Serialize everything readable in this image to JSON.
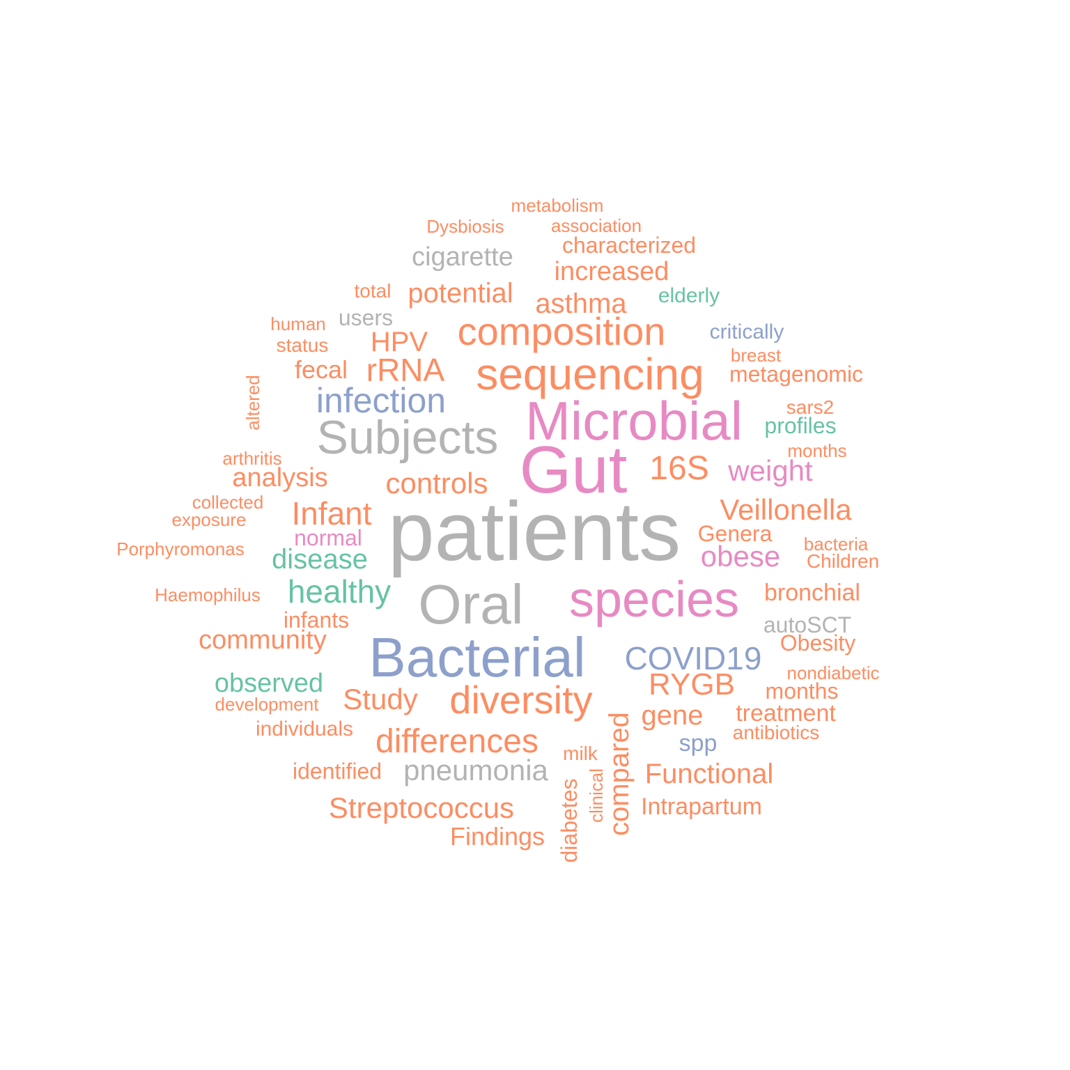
{
  "palette": {
    "orange": "#fc8d62",
    "gray": "#b3b3b3",
    "pink": "#e78ac3",
    "blue": "#8da0cb",
    "green": "#66c2a5"
  },
  "words": [
    {
      "text": "metabolism",
      "color": "orange"
    },
    {
      "text": "Dysbiosis",
      "color": "orange"
    },
    {
      "text": "association",
      "color": "orange"
    },
    {
      "text": "characterized",
      "color": "orange"
    },
    {
      "text": "cigarette",
      "color": "gray"
    },
    {
      "text": "increased",
      "color": "orange"
    },
    {
      "text": "total",
      "color": "orange"
    },
    {
      "text": "potential",
      "color": "orange"
    },
    {
      "text": "elderly",
      "color": "green"
    },
    {
      "text": "asthma",
      "color": "orange"
    },
    {
      "text": "users",
      "color": "gray"
    },
    {
      "text": "human",
      "color": "orange"
    },
    {
      "text": "composition",
      "color": "orange"
    },
    {
      "text": "critically",
      "color": "blue"
    },
    {
      "text": "HPV",
      "color": "orange"
    },
    {
      "text": "status",
      "color": "orange"
    },
    {
      "text": "breast",
      "color": "orange"
    },
    {
      "text": "fecal",
      "color": "orange"
    },
    {
      "text": "rRNA",
      "color": "orange"
    },
    {
      "text": "sequencing",
      "color": "orange"
    },
    {
      "text": "metagenomic",
      "color": "orange"
    },
    {
      "text": "altered",
      "color": "orange"
    },
    {
      "text": "infection",
      "color": "blue"
    },
    {
      "text": "sars2",
      "color": "orange"
    },
    {
      "text": "Microbial",
      "color": "pink"
    },
    {
      "text": "profiles",
      "color": "green"
    },
    {
      "text": "Subjects",
      "color": "gray"
    },
    {
      "text": "months",
      "color": "orange"
    },
    {
      "text": "arthritis",
      "color": "orange"
    },
    {
      "text": "Gut",
      "color": "pink"
    },
    {
      "text": "16S",
      "color": "orange"
    },
    {
      "text": "weight",
      "color": "pink"
    },
    {
      "text": "analysis",
      "color": "orange"
    },
    {
      "text": "controls",
      "color": "orange"
    },
    {
      "text": "collected",
      "color": "orange"
    },
    {
      "text": "Infant",
      "color": "orange"
    },
    {
      "text": "Veillonella",
      "color": "orange"
    },
    {
      "text": "exposure",
      "color": "orange"
    },
    {
      "text": "patients",
      "color": "gray"
    },
    {
      "text": "Genera",
      "color": "orange"
    },
    {
      "text": "normal",
      "color": "pink"
    },
    {
      "text": "bacteria",
      "color": "orange"
    },
    {
      "text": "Porphyromonas",
      "color": "orange"
    },
    {
      "text": "obese",
      "color": "pink"
    },
    {
      "text": "disease",
      "color": "green"
    },
    {
      "text": "Children",
      "color": "orange"
    },
    {
      "text": "healthy",
      "color": "green"
    },
    {
      "text": "species",
      "color": "pink"
    },
    {
      "text": "bronchial",
      "color": "orange"
    },
    {
      "text": "Haemophilus",
      "color": "orange"
    },
    {
      "text": "Oral",
      "color": "gray"
    },
    {
      "text": "infants",
      "color": "orange"
    },
    {
      "text": "autoSCT",
      "color": "gray"
    },
    {
      "text": "community",
      "color": "orange"
    },
    {
      "text": "Obesity",
      "color": "orange"
    },
    {
      "text": "Bacterial",
      "color": "blue"
    },
    {
      "text": "COVID19",
      "color": "blue"
    },
    {
      "text": "nondiabetic",
      "color": "orange"
    },
    {
      "text": "observed",
      "color": "green"
    },
    {
      "text": "RYGB",
      "color": "orange"
    },
    {
      "text": "months",
      "color": "orange"
    },
    {
      "text": "development",
      "color": "orange"
    },
    {
      "text": "Study",
      "color": "orange"
    },
    {
      "text": "diversity",
      "color": "orange"
    },
    {
      "text": "gene",
      "color": "orange"
    },
    {
      "text": "treatment",
      "color": "orange"
    },
    {
      "text": "individuals",
      "color": "orange"
    },
    {
      "text": "antibiotics",
      "color": "orange"
    },
    {
      "text": "differences",
      "color": "orange"
    },
    {
      "text": "spp",
      "color": "blue"
    },
    {
      "text": "milk",
      "color": "orange"
    },
    {
      "text": "compared",
      "color": "orange"
    },
    {
      "text": "identified",
      "color": "orange"
    },
    {
      "text": "pneumonia",
      "color": "gray"
    },
    {
      "text": "Functional",
      "color": "orange"
    },
    {
      "text": "clinical",
      "color": "orange"
    },
    {
      "text": "diabetes",
      "color": "orange"
    },
    {
      "text": "Streptococcus",
      "color": "orange"
    },
    {
      "text": "Intrapartum",
      "color": "orange"
    },
    {
      "text": "Findings",
      "color": "orange"
    }
  ]
}
